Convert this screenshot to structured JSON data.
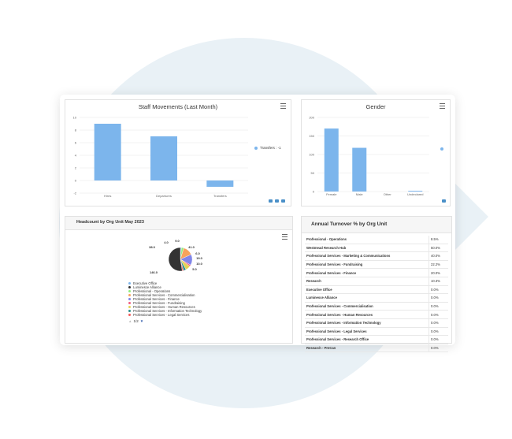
{
  "colors": {
    "accent": "#7cb5ec",
    "bg_circle": "#e9f1f6",
    "dark": "#333333"
  },
  "staff_chart": {
    "title": "Staff Movements (Last Month)",
    "menu_icon": "hamburger-menu-icon",
    "legend": "Transfers : -1",
    "chart_data": {
      "type": "bar",
      "categories": [
        "Hires",
        "Departures",
        "Transfers"
      ],
      "values": [
        9,
        7,
        -1
      ],
      "yticks": [
        "10",
        "8",
        "6",
        "4",
        "2",
        "0",
        "-2"
      ],
      "ylim": [
        -2,
        10
      ]
    }
  },
  "gender_chart": {
    "title": "Gender",
    "menu_icon": "hamburger-menu-icon",
    "chart_data": {
      "type": "bar",
      "categories": [
        "Female",
        "Male",
        "Other",
        "Undeclared"
      ],
      "values": [
        170,
        118,
        0,
        2
      ],
      "yticks": [
        "200",
        "150",
        "100",
        "50",
        "0"
      ],
      "ylim": [
        0,
        200
      ]
    }
  },
  "headcount_chart": {
    "title": "Headcount by Org Unit May 2023",
    "menu_icon": "hamburger-menu-icon",
    "pager": "1/2",
    "chart_data": {
      "type": "pie",
      "labels": [
        "4.0",
        "9.0",
        "38.0",
        "41.0",
        "6.0",
        "19.0",
        "10.0",
        "5.0",
        "146.0"
      ],
      "values": [
        4,
        9,
        38,
        41,
        6,
        19,
        10,
        5,
        146
      ]
    },
    "legend": [
      {
        "label": "Executive Office",
        "color": "#7cb5ec"
      },
      {
        "label": "Luminesce Alliance",
        "color": "#333333"
      },
      {
        "label": "Professional - Operations",
        "color": "#90ed7d"
      },
      {
        "label": "Professional Services - Commercialisation",
        "color": "#f7a35c"
      },
      {
        "label": "Professional Services - Finance",
        "color": "#8085e9"
      },
      {
        "label": "Professional Services - Fundraising",
        "color": "#f15c80"
      },
      {
        "label": "Professional Services - Human Resources",
        "color": "#e4d354"
      },
      {
        "label": "Professional Services - Information Technology",
        "color": "#2b908f"
      },
      {
        "label": "Professional Services - Legal Services",
        "color": "#f45b5b"
      }
    ]
  },
  "turnover": {
    "title": "Annual Turnover % by Org Unit",
    "rows": [
      {
        "name": "Professional - Operations",
        "value": "8.5%"
      },
      {
        "name": "Westmead Research Hub",
        "value": "50.0%"
      },
      {
        "name": "Professional Services - Marketing & Communications",
        "value": "40.0%"
      },
      {
        "name": "Professional Services - Fundraising",
        "value": "22.2%"
      },
      {
        "name": "Professional Services - Finance",
        "value": "20.0%"
      },
      {
        "name": "Research",
        "value": "10.3%"
      },
      {
        "name": "Executive Office",
        "value": "0.0%"
      },
      {
        "name": "Luminesce Alliance",
        "value": "0.0%"
      },
      {
        "name": "Professional Services - Commercialisation",
        "value": "0.0%"
      },
      {
        "name": "Professional Services - Human Resources",
        "value": "0.0%"
      },
      {
        "name": "Professional Services - Information Technology",
        "value": "0.0%"
      },
      {
        "name": "Professional Services - Legal Services",
        "value": "0.0%"
      },
      {
        "name": "Professional Services - Research Office",
        "value": "0.0%"
      },
      {
        "name": "Research - PreCan",
        "value": "0.0%"
      }
    ]
  }
}
